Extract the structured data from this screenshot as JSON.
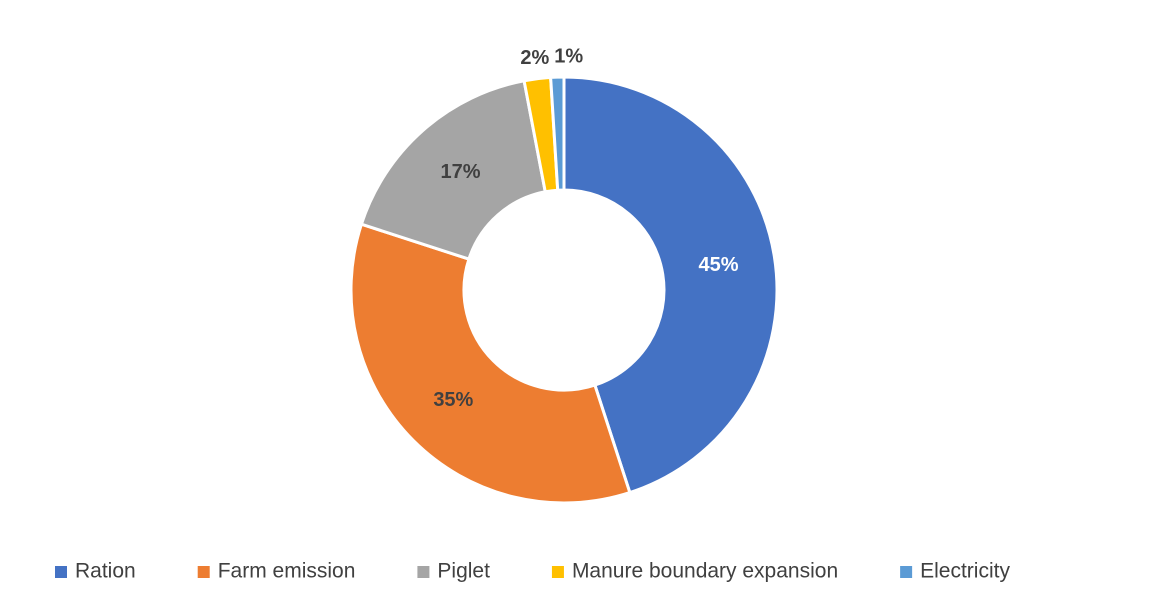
{
  "chart_data": {
    "type": "donut",
    "categories": [
      "Ration",
      "Farm emission",
      "Piglet",
      "Manure boundary expansion",
      "Electricity"
    ],
    "values": [
      45,
      35,
      17,
      2,
      1
    ],
    "value_labels": [
      "45%",
      "35%",
      "17%",
      "2%",
      "1%"
    ],
    "colors": [
      "#4472c4",
      "#ed7d31",
      "#a5a5a5",
      "#ffc000",
      "#5b9bd5"
    ],
    "value_label_colors": [
      "#ffffff",
      "#404040",
      "#404040",
      "#404040",
      "#404040"
    ],
    "legend": "bottom"
  }
}
